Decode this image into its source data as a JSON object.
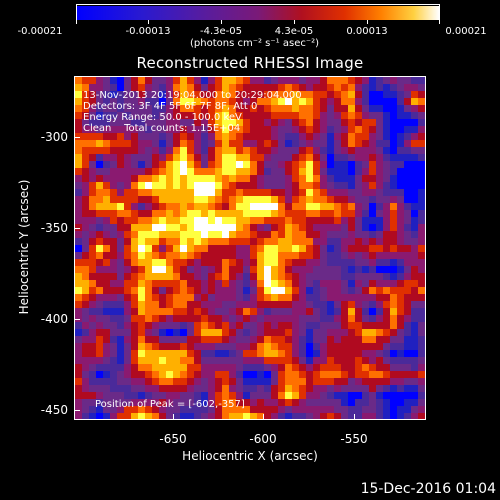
{
  "colorbar": {
    "tick_labels": [
      "-0.00021",
      "-0.00013",
      "-4.3e-05",
      "4.3e-05",
      "0.00013",
      "0.00021"
    ],
    "units_label": "(photons cm⁻² s⁻¹ asec⁻²)"
  },
  "plot": {
    "title": "Reconstructed RHESSI Image",
    "annotations": {
      "time_range": "13-Nov-2013 20:19:04.000 to 20:29:04.000",
      "detectors": "Detectors: 3F 4F 5F 6F 7F 8F, Att 0",
      "energy_range": "Energy Range: 50.0 - 100.0 keV",
      "method_counts": "Clean    Total counts: 1.15E+04",
      "peak_position": "Position of Peak = [-602,-357]"
    },
    "x_axis_label": "Heliocentric X (arcsec)",
    "y_axis_label": "Heliocentric Y (arcsec)",
    "x_tick_labels": [
      "-650",
      "-600",
      "-550"
    ],
    "y_tick_labels": [
      "-300",
      "-350",
      "-400",
      "-450"
    ]
  },
  "footer": {
    "date": "15-Dec-2016 01:04"
  },
  "colors": {
    "background": "#000000",
    "foreground": "#ffffff",
    "colormap": [
      "#0000ff",
      "#2020c0",
      "#4a2a9a",
      "#6a2a88",
      "#8a1a70",
      "#b00a20",
      "#e03000",
      "#ff7000",
      "#ffb000",
      "#ffff40",
      "#ffffff"
    ]
  }
}
